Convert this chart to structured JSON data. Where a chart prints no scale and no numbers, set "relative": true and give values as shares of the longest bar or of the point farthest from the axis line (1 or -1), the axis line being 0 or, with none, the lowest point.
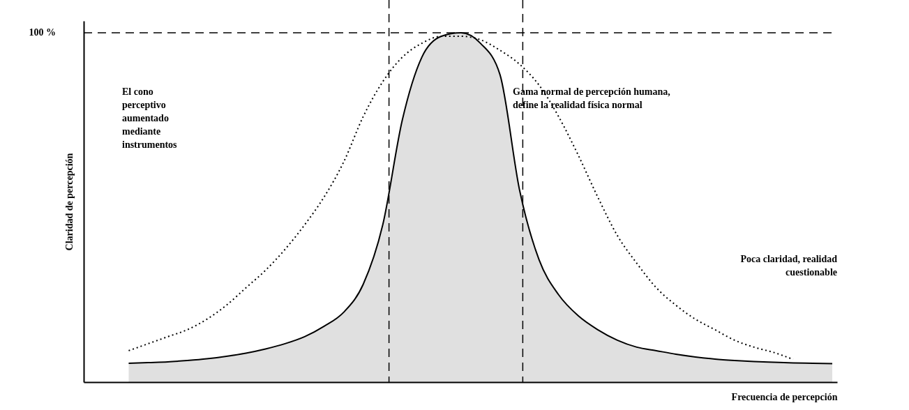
{
  "chart_data": {
    "type": "area",
    "relative": true,
    "xlabel": "Frecuencia de percepción",
    "ylabel": "Claridad de percepción",
    "categories": [
      null,
      null,
      null,
      null,
      null,
      null,
      null,
      null,
      null,
      null,
      null,
      null,
      null,
      null,
      null,
      null,
      null,
      null,
      null,
      null,
      null,
      null,
      null,
      null,
      null,
      null,
      null,
      null,
      null,
      null,
      null,
      null,
      null,
      null,
      null,
      null,
      null
    ],
    "series": [
      {
        "color": "#000000",
        "values": [
          0.054,
          0.056,
          0.058,
          0.062,
          0.067,
          0.074,
          0.083,
          0.095,
          0.11,
          0.13,
          0.16,
          0.2,
          0.28,
          0.45,
          0.75,
          0.93,
          0.99,
          1.0,
          0.97,
          0.88,
          0.55,
          0.35,
          0.25,
          0.19,
          0.15,
          0.12,
          0.1,
          0.09,
          0.08,
          0.072,
          0.066,
          0.062,
          0.059,
          0.057,
          0.055,
          0.054,
          0.053
        ]
      },
      {
        "type": "line",
        "color": "#000000",
        "line_style": "dotted",
        "values": [
          0.09,
          0.11,
          0.13,
          0.15,
          0.18,
          0.22,
          0.27,
          0.32,
          0.38,
          0.45,
          0.53,
          0.63,
          0.76,
          0.86,
          0.93,
          0.97,
          0.99,
          0.99,
          0.98,
          0.95,
          0.91,
          0.85,
          0.76,
          0.65,
          0.53,
          0.42,
          0.34,
          0.27,
          0.22,
          0.18,
          0.15,
          0.12,
          0.1,
          0.085,
          0.065,
          null,
          null
        ]
      }
    ],
    "ref_lines": [
      {
        "axis": "y",
        "value": 1,
        "label": "100 %",
        "line_style": "dashed"
      }
    ],
    "annotations": [
      "El cono perceptivo aumentado mediante instrumentos",
      "Gama normal de percepción humana, define la realidad física normal",
      "Poca claridad, realidad cuestionable"
    ],
    "grid": false
  }
}
